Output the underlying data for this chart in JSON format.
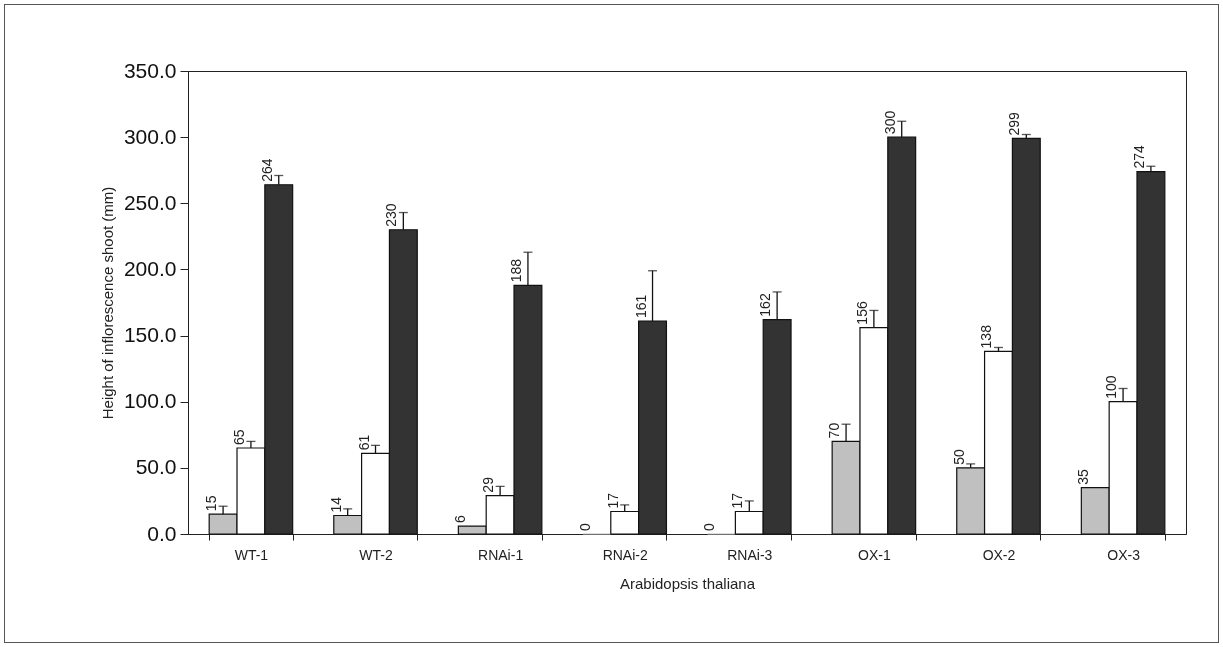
{
  "chart_data": {
    "type": "bar",
    "xlabel": "Arabidopsis thaliana",
    "ylabel": "Height of inflorescence shoot (mm)",
    "categories": [
      "WT-1",
      "WT-2",
      "RNAi-1",
      "RNAi-2",
      "RNAi-3",
      "OX-1",
      "OX-2",
      "OX-3"
    ],
    "series": [
      {
        "color": "#c0c0c0",
        "values": [
          15,
          14,
          6,
          0,
          0,
          70,
          50,
          35
        ],
        "errors": [
          [
            15,
            21
          ],
          [
            14,
            19
          ],
          null,
          null,
          null,
          [
            70,
            83
          ],
          [
            50,
            53
          ],
          null
        ]
      },
      {
        "color": "#ffffff",
        "values": [
          65,
          61,
          29,
          17,
          17,
          156,
          138,
          100
        ],
        "errors": [
          [
            65,
            70
          ],
          [
            61,
            67
          ],
          [
            29,
            36
          ],
          [
            17,
            22
          ],
          [
            17,
            25
          ],
          [
            156,
            169
          ],
          [
            138,
            141
          ],
          [
            100,
            110
          ]
        ]
      },
      {
        "color": "#333333",
        "values": [
          264,
          230,
          188,
          161,
          162,
          300,
          299,
          274
        ],
        "errors": [
          [
            264,
            271
          ],
          [
            230,
            243
          ],
          [
            188,
            213
          ],
          [
            161,
            199
          ],
          [
            162,
            183
          ],
          [
            300,
            312
          ],
          [
            299,
            302
          ],
          [
            274,
            278
          ]
        ]
      }
    ],
    "ylim": [
      0,
      350
    ],
    "yticks": [
      {
        "value": 0,
        "label": "0.0"
      },
      {
        "value": 50,
        "label": "50.0"
      },
      {
        "value": 100,
        "label": "100.0"
      },
      {
        "value": 150,
        "label": "150.0"
      },
      {
        "value": 200,
        "label": "200.0"
      },
      {
        "value": 250,
        "label": "250.0"
      },
      {
        "value": 300,
        "label": "300.0"
      },
      {
        "value": 350,
        "label": "350.0"
      }
    ],
    "data_labels": true
  }
}
